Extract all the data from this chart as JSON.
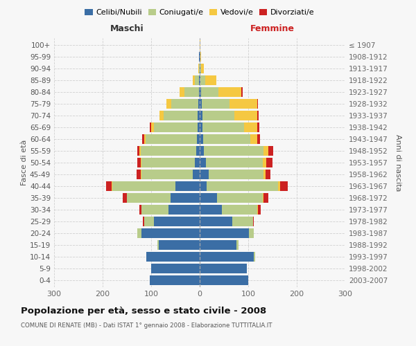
{
  "age_groups": [
    "0-4",
    "5-9",
    "10-14",
    "15-19",
    "20-24",
    "25-29",
    "30-34",
    "35-39",
    "40-44",
    "45-49",
    "50-54",
    "55-59",
    "60-64",
    "65-69",
    "70-74",
    "75-79",
    "80-84",
    "85-89",
    "90-94",
    "95-99",
    "100+"
  ],
  "birth_years": [
    "2003-2007",
    "1998-2002",
    "1993-1997",
    "1988-1992",
    "1983-1987",
    "1978-1982",
    "1973-1977",
    "1968-1972",
    "1963-1967",
    "1958-1962",
    "1953-1957",
    "1948-1952",
    "1943-1947",
    "1938-1942",
    "1933-1937",
    "1928-1932",
    "1923-1927",
    "1918-1922",
    "1913-1917",
    "1908-1912",
    "≤ 1907"
  ],
  "males_celibi": [
    103,
    100,
    110,
    85,
    120,
    95,
    65,
    60,
    50,
    15,
    10,
    7,
    6,
    5,
    5,
    3,
    2,
    1,
    0,
    1,
    0
  ],
  "males_coniugati": [
    0,
    0,
    0,
    2,
    8,
    20,
    55,
    90,
    130,
    105,
    110,
    115,
    105,
    90,
    70,
    55,
    30,
    9,
    2,
    0,
    0
  ],
  "males_vedovi": [
    0,
    0,
    0,
    0,
    0,
    0,
    0,
    0,
    1,
    1,
    1,
    2,
    3,
    5,
    8,
    10,
    10,
    5,
    1,
    0,
    0
  ],
  "males_divorziati": [
    0,
    0,
    0,
    0,
    0,
    2,
    5,
    8,
    12,
    9,
    7,
    5,
    5,
    3,
    0,
    0,
    0,
    0,
    0,
    0,
    0
  ],
  "females_nubili": [
    100,
    97,
    112,
    75,
    102,
    67,
    46,
    35,
    14,
    19,
    13,
    9,
    7,
    6,
    5,
    4,
    3,
    2,
    1,
    1,
    0
  ],
  "females_coniugate": [
    0,
    0,
    2,
    5,
    10,
    43,
    73,
    95,
    148,
    112,
    117,
    122,
    97,
    86,
    66,
    57,
    36,
    10,
    2,
    0,
    0
  ],
  "females_vedove": [
    0,
    0,
    0,
    0,
    0,
    0,
    1,
    2,
    3,
    5,
    7,
    10,
    15,
    26,
    47,
    57,
    47,
    22,
    5,
    2,
    1
  ],
  "females_divorziate": [
    0,
    0,
    0,
    0,
    0,
    2,
    5,
    9,
    16,
    9,
    13,
    10,
    5,
    5,
    3,
    2,
    2,
    0,
    0,
    0,
    0
  ],
  "color_celibi": "#3b6ea5",
  "color_coniugati": "#b8cc8a",
  "color_vedovi": "#f5c842",
  "color_divorziati": "#cc2222",
  "title": "Popolazione per età, sesso e stato civile - 2008",
  "subtitle": "COMUNE DI RENATE (MB) - Dati ISTAT 1° gennaio 2008 - Elaborazione TUTTITALIA.IT",
  "label_maschi": "Maschi",
  "label_femmine": "Femmine",
  "ylabel_left": "Fasce di età",
  "ylabel_right": "Anni di nascita",
  "legend_labels": [
    "Celibi/Nubili",
    "Coniugati/e",
    "Vedovi/e",
    "Divorziati/e"
  ],
  "xlim": 300,
  "bg_color": "#f7f7f7",
  "grid_color": "#cccccc"
}
